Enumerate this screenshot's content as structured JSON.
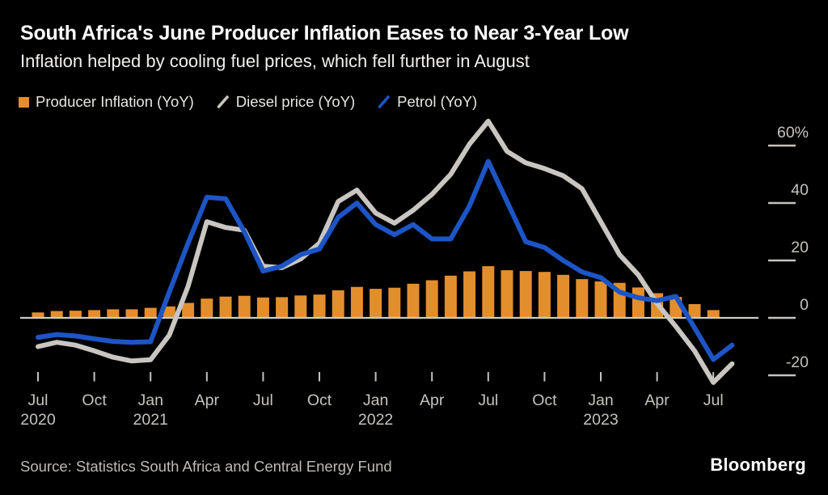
{
  "header": {
    "title": "South Africa's June Producer Inflation Eases to Near 3-Year Low",
    "subtitle": "Inflation helped by cooling fuel prices, which fell further in August"
  },
  "legend": [
    {
      "id": "producer-inflation",
      "label": "Producer Inflation (YoY)",
      "swatch": "square",
      "color": "#e38e2d"
    },
    {
      "id": "diesel",
      "label": "Diesel price (YoY)",
      "swatch": "slash",
      "color": "#c9c6c1"
    },
    {
      "id": "petrol",
      "label": "Petrol (YoY)",
      "swatch": "slash",
      "color": "#1d55c6"
    }
  ],
  "footer": {
    "source": "Source: Statistics South Africa and Central Energy Fund",
    "logo": "Bloomberg"
  },
  "colors": {
    "background": "#000000",
    "bars": "#e38e2d",
    "diesel_line": "#c9c6c1",
    "petrol_line": "#1d55c6",
    "baseline": "#ccc9c4",
    "tick": "#c6c3be",
    "axis_text": "#c6c3be"
  },
  "chart_data": {
    "type": "combo",
    "subtypes": [
      "bar",
      "line",
      "line"
    ],
    "unit": "%",
    "frequency": "monthly",
    "x_start": "Jul 2020",
    "x_end": "Aug 2023",
    "grid": false,
    "legend_position": "top",
    "y_axis": {
      "range": [
        -25,
        70
      ],
      "ticks": [
        {
          "value": 60,
          "label": "60%"
        },
        {
          "value": 40,
          "label": "40"
        },
        {
          "value": 20,
          "label": "20"
        },
        {
          "value": 0,
          "label": "0"
        },
        {
          "value": -20,
          "label": "-20"
        }
      ]
    },
    "x_axis": {
      "tick_every_months": 3,
      "ticks": [
        {
          "month": "Jul",
          "year": "2020"
        },
        {
          "month": "Oct"
        },
        {
          "month": "Jan",
          "year": "2021"
        },
        {
          "month": "Apr"
        },
        {
          "month": "Jul"
        },
        {
          "month": "Oct"
        },
        {
          "month": "Jan",
          "year": "2022"
        },
        {
          "month": "Apr"
        },
        {
          "month": "Jul"
        },
        {
          "month": "Oct"
        },
        {
          "month": "Jan",
          "year": "2023"
        },
        {
          "month": "Apr"
        },
        {
          "month": "Jul"
        }
      ]
    },
    "series": [
      {
        "name": "Producer Inflation (YoY)",
        "type": "bar",
        "color": "#e38e2d",
        "coverage": "Jul 2020 - Jul 2023",
        "values": [
          1.9,
          2.4,
          2.5,
          2.7,
          3.0,
          3.0,
          3.5,
          4.0,
          5.2,
          6.7,
          7.4,
          7.7,
          7.1,
          7.2,
          7.8,
          8.1,
          9.6,
          10.8,
          10.1,
          10.5,
          11.9,
          13.1,
          14.7,
          16.2,
          18.0,
          16.6,
          16.3,
          16.0,
          15.0,
          13.5,
          12.7,
          12.2,
          10.6,
          8.6,
          7.3,
          4.8,
          2.7
        ]
      },
      {
        "name": "Diesel price (YoY)",
        "type": "line",
        "color": "#c9c6c1",
        "coverage": "Jul 2020 - Aug 2023",
        "values": [
          -10,
          -8.5,
          -9.5,
          -11.5,
          -13.7,
          -15,
          -14.6,
          -6,
          11,
          33.5,
          31.5,
          30.5,
          18,
          17.5,
          20.5,
          26,
          40.5,
          44.5,
          36.5,
          33,
          37.5,
          43,
          50,
          60.5,
          68.5,
          58,
          54,
          52,
          49.5,
          45,
          33.5,
          22,
          15,
          5,
          -3,
          -11.5,
          -22.5,
          -16
        ]
      },
      {
        "name": "Petrol (YoY)",
        "type": "line",
        "color": "#1d55c6",
        "coverage": "Jul 2020 - Aug 2023",
        "values": [
          -6.8,
          -5.8,
          -6.3,
          -7.3,
          -8.2,
          -8.5,
          -8.3,
          9,
          26,
          42,
          41.5,
          30,
          16.3,
          18,
          22,
          24,
          35,
          40,
          32.5,
          29,
          32.5,
          27.5,
          27.5,
          39,
          54.5,
          40.5,
          26.5,
          24.5,
          20,
          16,
          14,
          9,
          7,
          6,
          7.5,
          -3.5,
          -14.5,
          -9.5
        ]
      }
    ]
  }
}
